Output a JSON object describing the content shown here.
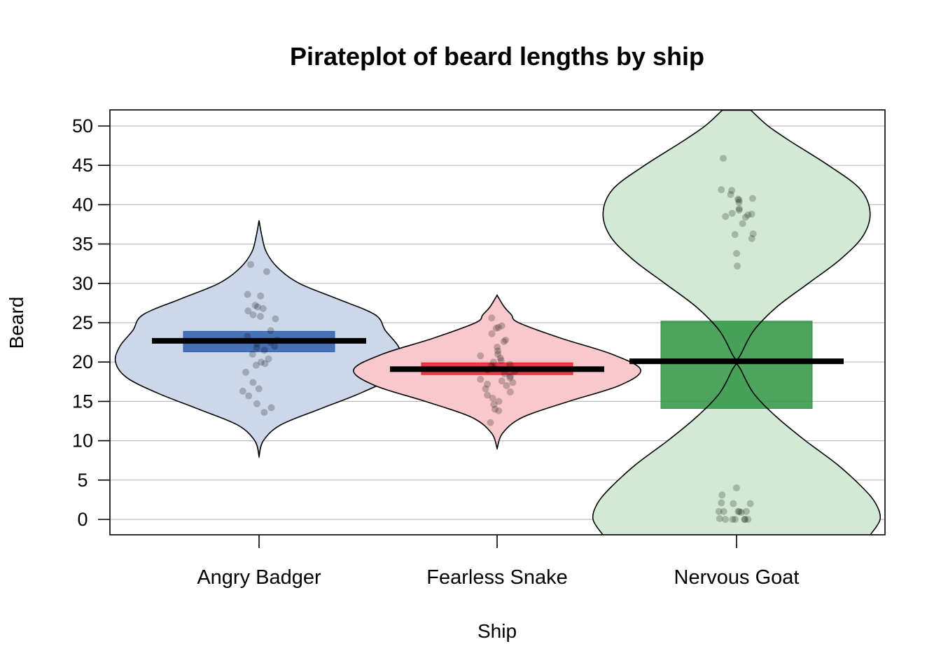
{
  "chart_data": {
    "type": "pirateplot",
    "title": "Pirateplot of beard lengths by ship",
    "xlabel": "Ship",
    "ylabel": "Beard",
    "ylim": [
      -2,
      52
    ],
    "y_ticks": [
      0,
      5,
      10,
      15,
      20,
      25,
      30,
      35,
      40,
      45,
      50
    ],
    "grid": true,
    "categories": [
      "Angry Badger",
      "Fearless Snake",
      "Nervous Goat"
    ],
    "series": [
      {
        "category": "Angry Badger",
        "color": "#2f5fae",
        "bean_fill": "#ccd8ea",
        "mean": 22.7,
        "inference_band": [
          21.3,
          23.9
        ],
        "points": [
          32.4,
          31.5,
          28.6,
          28.4,
          27.2,
          27.0,
          26.8,
          26.5,
          26.0,
          25.8,
          25.5,
          24.0,
          23.3,
          22.8,
          22.5,
          22.3,
          22.0,
          21.8,
          21.5,
          21.0,
          20.4,
          20.0,
          19.8,
          19.6,
          18.7,
          17.4,
          16.6,
          16.3,
          15.7,
          14.7,
          14.2,
          13.6
        ],
        "density": [
          [
            8,
            0.0
          ],
          [
            10,
            0.03
          ],
          [
            12,
            0.15
          ],
          [
            14,
            0.42
          ],
          [
            16,
            0.7
          ],
          [
            18,
            0.92
          ],
          [
            20,
            1.0
          ],
          [
            22,
            0.97
          ],
          [
            24,
            0.88
          ],
          [
            26,
            0.81
          ],
          [
            28,
            0.55
          ],
          [
            30,
            0.28
          ],
          [
            32,
            0.13
          ],
          [
            34,
            0.05
          ],
          [
            36,
            0.02
          ],
          [
            38,
            0.0
          ]
        ]
      },
      {
        "category": "Fearless Snake",
        "color": "#e8202f",
        "bean_fill": "#f8c8cc",
        "mean": 19.1,
        "inference_band": [
          18.4,
          19.9
        ],
        "points": [
          25.6,
          24.6,
          24.4,
          24.3,
          23.6,
          22.8,
          22.6,
          21.9,
          21.4,
          21.0,
          20.8,
          20.5,
          20.2,
          20.0,
          19.7,
          19.5,
          19.2,
          19.0,
          18.8,
          18.5,
          18.2,
          18.0,
          17.8,
          17.6,
          17.4,
          17.2,
          17.0,
          16.6,
          16.2,
          15.8,
          15.4,
          15.0,
          14.6,
          14.0,
          13.8,
          12.3
        ],
        "density": [
          [
            9,
            0.0
          ],
          [
            11,
            0.04
          ],
          [
            13,
            0.18
          ],
          [
            15,
            0.5
          ],
          [
            17,
            0.85
          ],
          [
            19,
            1.0
          ],
          [
            21,
            0.8
          ],
          [
            23,
            0.45
          ],
          [
            25,
            0.15
          ],
          [
            26,
            0.1
          ],
          [
            27,
            0.05
          ],
          [
            28.5,
            0.0
          ]
        ]
      },
      {
        "category": "Nervous Goat",
        "color": "#2e9442",
        "bean_fill": "#d2e9d6",
        "mean": 20.1,
        "inference_band": [
          14.1,
          25.2
        ],
        "points": [
          45.9,
          41.9,
          41.8,
          41.3,
          40.8,
          40.7,
          40.6,
          40.3,
          39.5,
          39.3,
          38.9,
          38.8,
          38.7,
          38.5,
          38.4,
          37.6,
          36.3,
          36.2,
          35.7,
          33.8,
          32.2,
          4.0,
          3.1,
          2.1,
          2.0,
          2.0,
          1.0,
          1.0,
          1.0,
          1.0,
          1.0,
          0.9,
          0.1,
          0.0,
          0.0,
          0.0,
          0.0,
          0.0,
          0.0
        ],
        "density": [
          [
            -2,
            0.93
          ],
          [
            0,
            1.0
          ],
          [
            2,
            0.97
          ],
          [
            4,
            0.88
          ],
          [
            7,
            0.7
          ],
          [
            10,
            0.48
          ],
          [
            13,
            0.28
          ],
          [
            16,
            0.12
          ],
          [
            19,
            0.03
          ],
          [
            20,
            0.0
          ],
          [
            21,
            0.03
          ],
          [
            24,
            0.12
          ],
          [
            27,
            0.28
          ],
          [
            30,
            0.5
          ],
          [
            33,
            0.72
          ],
          [
            36,
            0.88
          ],
          [
            39,
            0.93
          ],
          [
            42,
            0.86
          ],
          [
            45,
            0.64
          ],
          [
            48,
            0.38
          ],
          [
            50,
            0.22
          ],
          [
            52,
            0.1
          ]
        ]
      }
    ]
  }
}
